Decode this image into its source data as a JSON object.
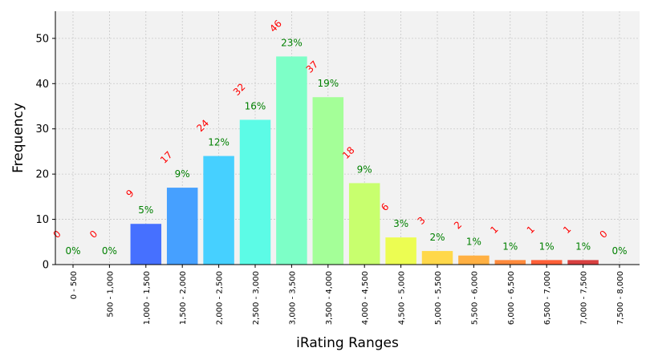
{
  "chart_data": {
    "type": "bar",
    "title": "",
    "xlabel": "iRating Ranges",
    "ylabel": "Frequency",
    "ylim": [
      0,
      56
    ],
    "yticks": [
      0,
      10,
      20,
      30,
      40,
      50
    ],
    "grid": true,
    "categories": [
      "0 - 500",
      "500 - 1,000",
      "1,000 - 1,500",
      "1,500 - 2,000",
      "2,000 - 2,500",
      "2,500 - 3,000",
      "3,000 - 3,500",
      "3,500 - 4,000",
      "4,000 - 4,500",
      "4,500 - 5,000",
      "5,000 - 5,500",
      "5,500 - 6,000",
      "6,000 - 6,500",
      "6,500 - 7,000",
      "7,000 - 7,500",
      "7,500 - 8,000"
    ],
    "values": [
      0,
      0,
      9,
      17,
      24,
      32,
      46,
      37,
      18,
      6,
      3,
      2,
      1,
      1,
      1,
      0
    ],
    "percent_labels": [
      "0%",
      "0%",
      "5%",
      "9%",
      "12%",
      "16%",
      "23%",
      "19%",
      "9%",
      "3%",
      "2%",
      "1%",
      "1%",
      "1%",
      "1%",
      "0%"
    ],
    "bar_colors": [
      "#3f51b5",
      "#3f51b5",
      "#4670ff",
      "#46a0ff",
      "#46d0ff",
      "#5cfbe6",
      "#7dffc7",
      "#a4ff98",
      "#c8ff6e",
      "#ecfd52",
      "#ffd84a",
      "#ffb042",
      "#ff8a3c",
      "#ff6038",
      "#d84040",
      "#b02020"
    ],
    "count_label_color": "#ff0000",
    "percent_label_color": "#008000",
    "plot_background": "#f2f2f2"
  }
}
